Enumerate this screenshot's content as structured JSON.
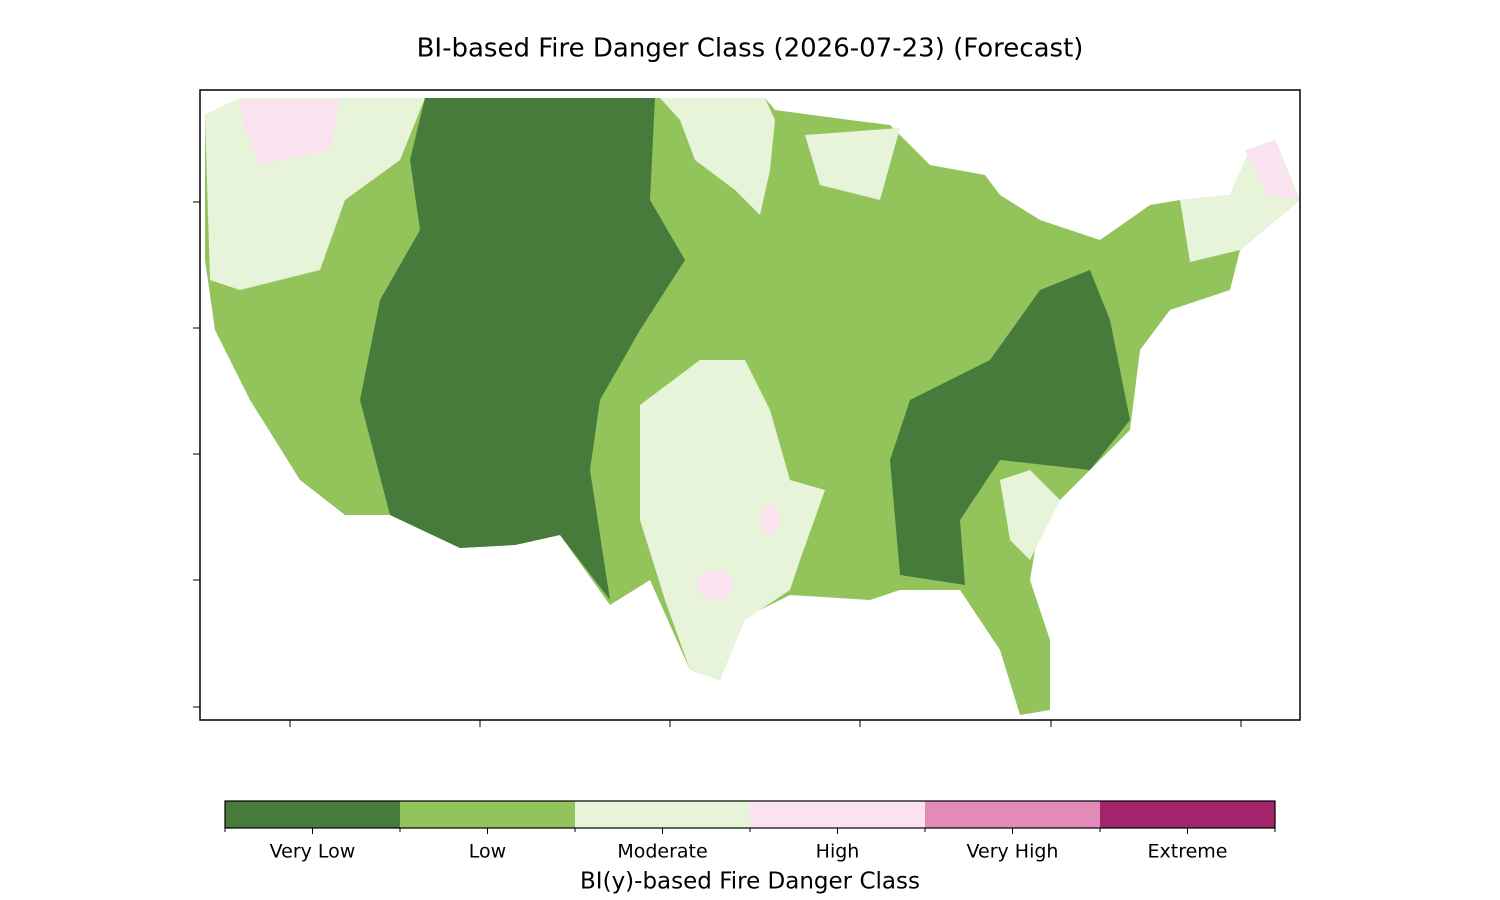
{
  "title": "BI-based Fire Danger Class (2026-07-23) (Forecast)",
  "colorbar": {
    "label": "BI(y)-based Fire Danger Class",
    "classes": [
      {
        "name": "Very Low",
        "color": "#467b3b"
      },
      {
        "name": "Low",
        "color": "#93c45c"
      },
      {
        "name": "Moderate",
        "color": "#e7f4d9"
      },
      {
        "name": "High",
        "color": "#fbe2ef"
      },
      {
        "name": "Very High",
        "color": "#e38ab8"
      },
      {
        "name": "Extreme",
        "color": "#a2246b"
      }
    ]
  }
}
